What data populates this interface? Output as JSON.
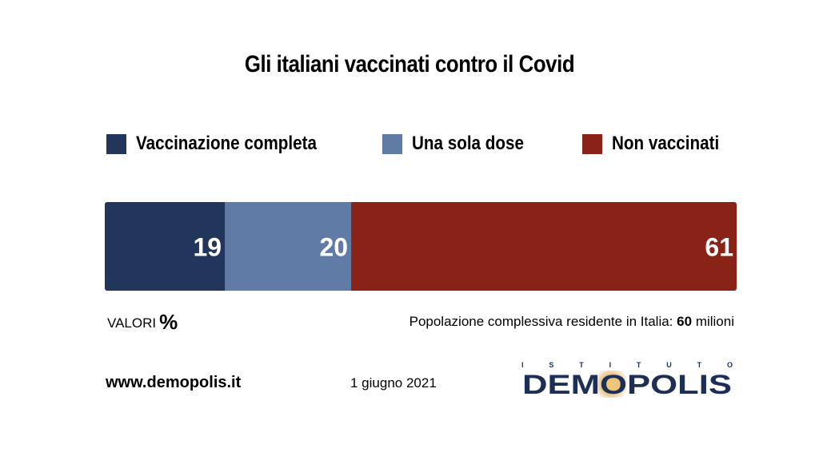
{
  "chart_data": {
    "type": "bar",
    "orientation": "horizontal-stacked",
    "title": "Gli italiani vaccinati contro il Covid",
    "series": [
      {
        "name": "Vaccinazione completa",
        "value": 19,
        "label": "19",
        "color": "#22355b"
      },
      {
        "name": "Una sola dose",
        "value": 20,
        "label": "20",
        "color": "#5f7ba6"
      },
      {
        "name": "Non vaccinati",
        "value": 61,
        "label": "61",
        "color": "#8a2317"
      }
    ],
    "total": 100,
    "legend_position": "top"
  },
  "footer": {
    "valori_label": "VALORI",
    "valori_unit": "%",
    "population_text": "Popolazione complessiva residente in Italia:",
    "population_value": "60",
    "population_unit": "milioni",
    "website": "www.demopolis.it",
    "date": "1 giugno 2021"
  },
  "logo": {
    "upper": "ISTITUTO",
    "word": "DEMOPOLIS",
    "color": "#1d2f55",
    "accent": "#c07a1e"
  }
}
